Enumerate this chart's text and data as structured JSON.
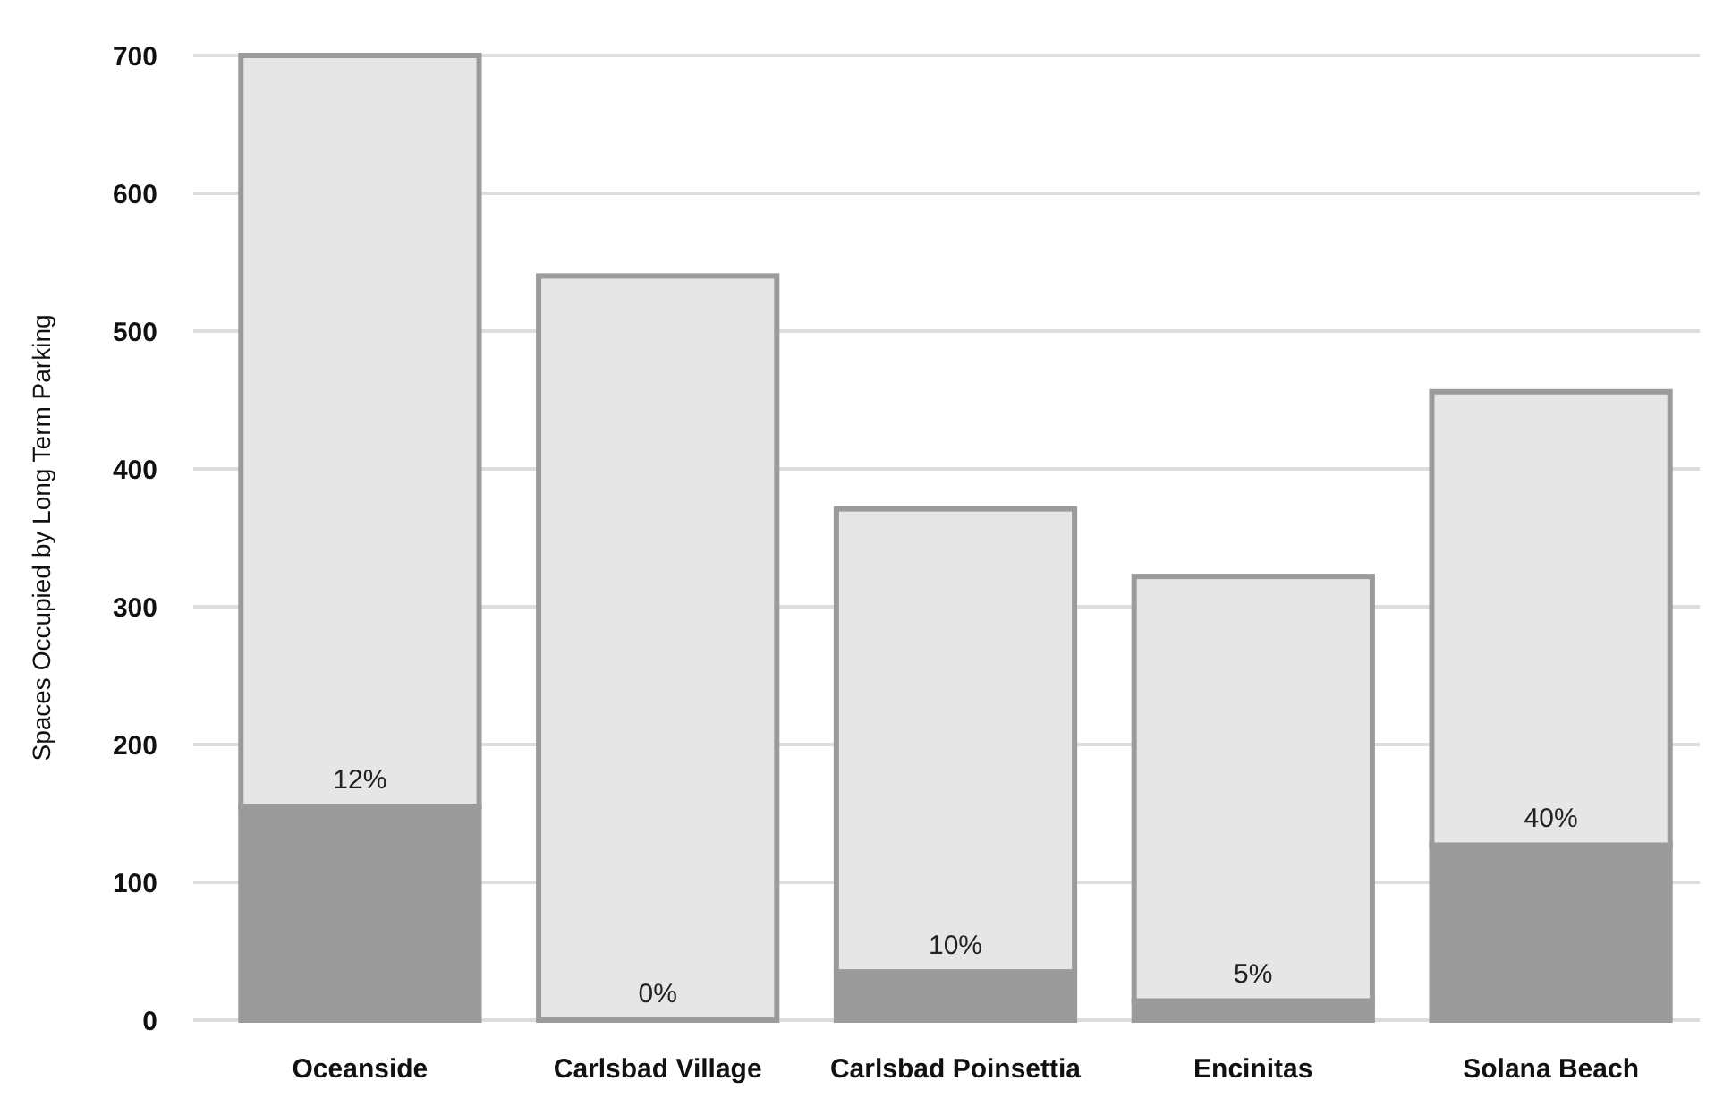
{
  "chart_data": {
    "type": "bar",
    "stacked": true,
    "ylabel": "Spaces Occupied by Long Term Parking",
    "categories": [
      "Oceanside",
      "Carlsbad Village",
      "Carlsbad Poinsettia",
      "Encinitas",
      "Solana Beach"
    ],
    "series": [
      {
        "color": "#9b9b9b",
        "values": [
          155,
          0,
          35,
          14,
          127
        ]
      },
      {
        "color": "#e6e6e6",
        "values": [
          545,
          540,
          336,
          308,
          329
        ]
      }
    ],
    "annotations": [
      {
        "text": "12%",
        "x": "Oceanside",
        "y": 155
      },
      {
        "text": "0%",
        "x": "Carlsbad Village",
        "y": 0
      },
      {
        "text": "10%",
        "x": "Carlsbad Poinsettia",
        "y": 35
      },
      {
        "text": "5%",
        "x": "Encinitas",
        "y": 14
      },
      {
        "text": "40%",
        "x": "Solana Beach",
        "y": 127
      }
    ],
    "ylim": [
      0,
      700
    ],
    "yticks": [
      0,
      100,
      200,
      300,
      400,
      500,
      600,
      700
    ],
    "grid": "y"
  }
}
